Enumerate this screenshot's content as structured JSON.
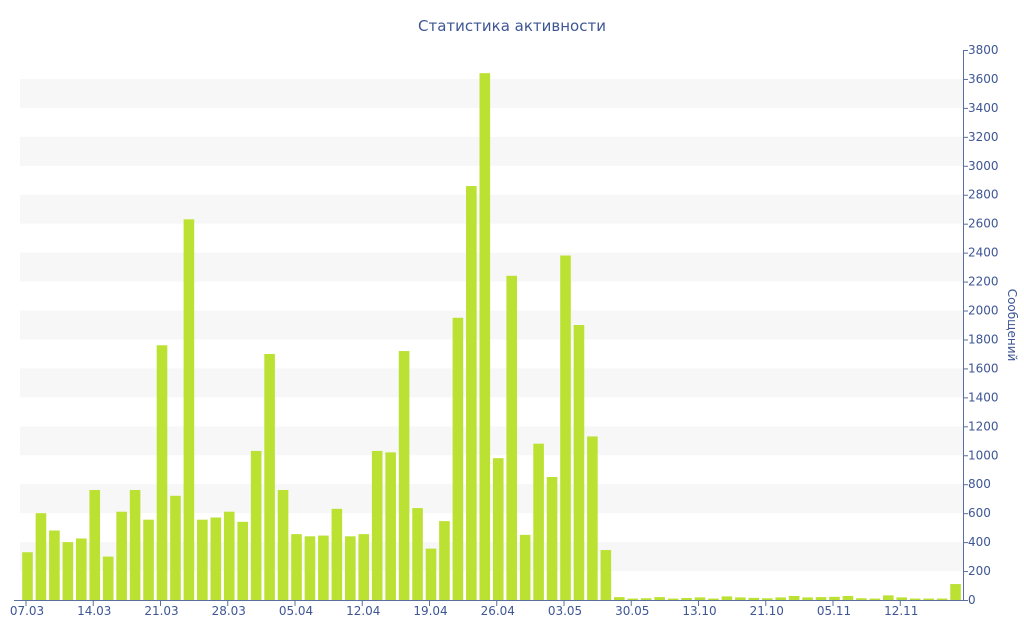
{
  "chart_data": {
    "type": "bar",
    "title": "Статистика активности",
    "xlabel": "",
    "ylabel": "Сообщений",
    "ylim": [
      0,
      3800
    ],
    "y_ticks": [
      0,
      200,
      400,
      600,
      800,
      1000,
      1200,
      1400,
      1600,
      1800,
      2000,
      2200,
      2400,
      2600,
      2800,
      3000,
      3200,
      3400,
      3600,
      3800
    ],
    "y_axis_side": "right",
    "grid": "alternating horizontal bands",
    "x_tick_labels": [
      {
        "label": "07.03",
        "index": 0
      },
      {
        "label": "14.03",
        "index": 5
      },
      {
        "label": "21.03",
        "index": 10
      },
      {
        "label": "28.03",
        "index": 15
      },
      {
        "label": "05.04",
        "index": 20
      },
      {
        "label": "12.04",
        "index": 25
      },
      {
        "label": "19.04",
        "index": 30
      },
      {
        "label": "26.04",
        "index": 35
      },
      {
        "label": "03.05",
        "index": 40
      },
      {
        "label": "30.05",
        "index": 45
      },
      {
        "label": "13.10",
        "index": 50
      },
      {
        "label": "21.10",
        "index": 55
      },
      {
        "label": "05.11",
        "index": 60
      },
      {
        "label": "12.11",
        "index": 65
      }
    ],
    "values": [
      330,
      600,
      480,
      400,
      425,
      760,
      300,
      610,
      760,
      555,
      1760,
      720,
      2630,
      555,
      570,
      610,
      540,
      1030,
      1700,
      760,
      455,
      440,
      445,
      630,
      440,
      455,
      1030,
      1020,
      1720,
      635,
      355,
      545,
      1950,
      2860,
      3640,
      980,
      2240,
      450,
      1080,
      850,
      2380,
      1900,
      1130,
      345,
      20,
      10,
      12,
      20,
      10,
      14,
      18,
      10,
      25,
      18,
      15,
      12,
      18,
      28,
      18,
      20,
      22,
      28,
      12,
      10,
      32,
      18,
      10,
      10,
      10,
      110
    ],
    "bar_color": "#bbe133",
    "text_color": "#3e5694",
    "band_color": "#f7f7f7"
  }
}
